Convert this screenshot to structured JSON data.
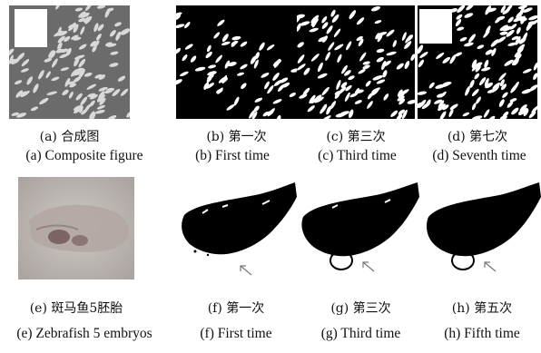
{
  "figure": {
    "row1": {
      "panels": [
        {
          "cn": "(a) 合成图",
          "en": "(a) Composite figure"
        },
        {
          "cn": "(b) 第一次",
          "en": "(b) First time"
        },
        {
          "cn": "(c) 第三次",
          "en": "(c) Third time"
        },
        {
          "cn": "(d) 第七次",
          "en": "(d) Seventh time"
        }
      ]
    },
    "row2": {
      "panels": [
        {
          "cn": "(e) 斑马鱼5胚胎",
          "en": "(e) Zebrafish 5 embryos"
        },
        {
          "cn": "(f) 第一次",
          "en": "(f) First time"
        },
        {
          "cn": "(g) 第三次",
          "en": "(g) Third time"
        },
        {
          "cn": "(h) 第五次",
          "en": "(h) Fifth time"
        }
      ]
    }
  },
  "colors": {
    "foreground": "#000000",
    "background": "#ffffff",
    "photo_gray": "#6e6e6e",
    "embryo_photo": "#c6c0bc"
  }
}
